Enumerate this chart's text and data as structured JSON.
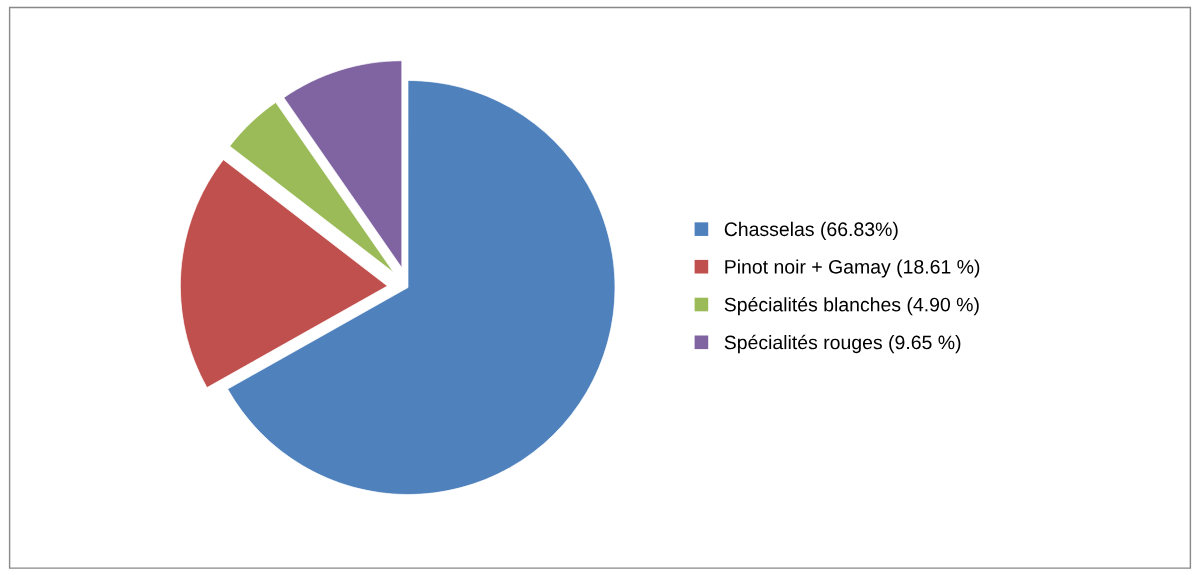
{
  "chart_data": {
    "type": "pie",
    "categories": [
      "Chasselas (66.83%)",
      "Pinot noir + Gamay (18.61 %)",
      "Spécialités blanches (4.90 %)",
      "Spécialités rouges (9.65 %)"
    ],
    "values": [
      66.83,
      18.61,
      4.9,
      9.65
    ],
    "colors": [
      "#4f81bd",
      "#c0504d",
      "#9bbb59",
      "#8064a2"
    ],
    "legend": "right"
  }
}
